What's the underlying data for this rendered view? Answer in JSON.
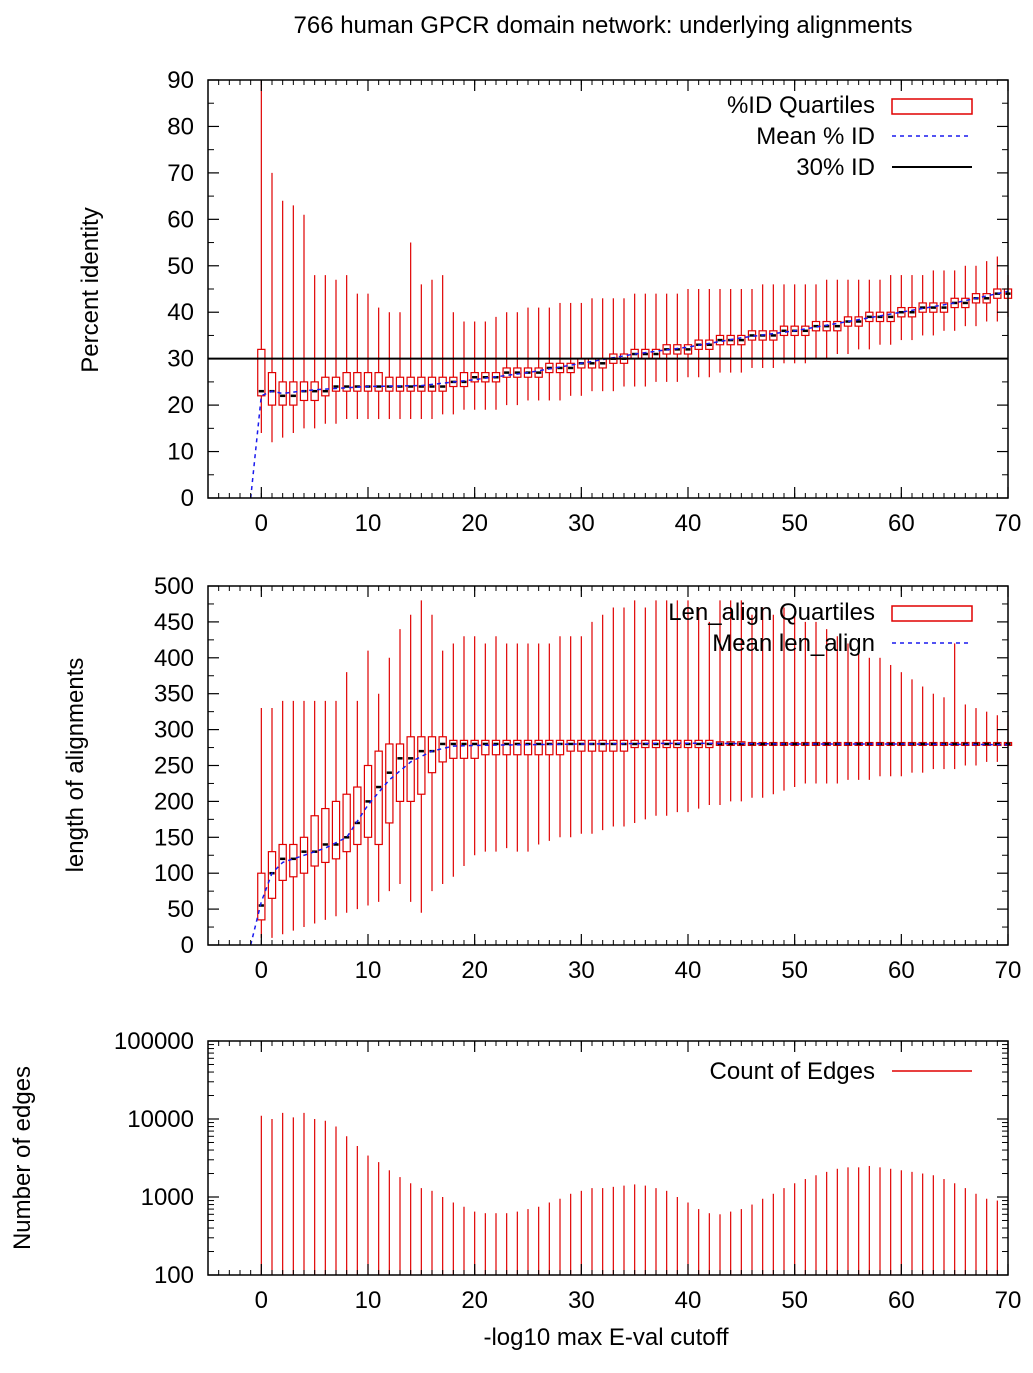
{
  "title": "766 human GPCR domain network: underlying alignments",
  "chart_data": [
    {
      "type": "box",
      "ylabel": "Percent identity",
      "xlabel": "",
      "xlim": [
        -5,
        70
      ],
      "ylim": [
        0,
        90
      ],
      "xticks": [
        0,
        10,
        20,
        30,
        40,
        50,
        60,
        70
      ],
      "yticks": [
        0,
        10,
        20,
        30,
        40,
        50,
        60,
        70,
        80,
        90
      ],
      "legend_position": "top-right",
      "legend": {
        "quartiles": "%ID Quartiles",
        "mean": "Mean % ID",
        "reference": "30% ID"
      },
      "reference_line": 30,
      "x": [
        0,
        1,
        2,
        3,
        4,
        5,
        6,
        7,
        8,
        9,
        10,
        11,
        12,
        13,
        14,
        15,
        16,
        17,
        18,
        19,
        20,
        21,
        22,
        23,
        24,
        25,
        26,
        27,
        28,
        29,
        30,
        31,
        32,
        33,
        34,
        35,
        36,
        37,
        38,
        39,
        40,
        41,
        42,
        43,
        44,
        45,
        46,
        47,
        48,
        49,
        50,
        51,
        52,
        53,
        54,
        55,
        56,
        57,
        58,
        59,
        60,
        61,
        62,
        63,
        64,
        65,
        66,
        67,
        68,
        69,
        70
      ],
      "median": [
        23,
        23,
        22,
        22,
        23,
        23,
        23,
        24,
        24,
        24,
        24,
        24,
        24,
        24,
        24,
        24,
        24,
        24,
        25,
        25,
        26,
        26,
        26,
        27,
        27,
        27,
        27,
        28,
        28,
        28,
        29,
        29,
        29,
        30,
        30,
        31,
        31,
        31,
        32,
        32,
        32,
        33,
        33,
        34,
        34,
        34,
        35,
        35,
        35,
        36,
        36,
        36,
        37,
        37,
        37,
        38,
        38,
        39,
        39,
        39,
        40,
        40,
        41,
        41,
        41,
        42,
        42,
        43,
        43,
        44,
        44
      ],
      "q1": [
        22,
        20,
        20,
        20,
        21,
        21,
        22,
        23,
        23,
        23,
        23,
        23,
        23,
        23,
        23,
        23,
        23,
        23,
        24,
        24,
        25,
        25,
        25,
        26,
        26,
        26,
        26,
        27,
        27,
        27,
        28,
        28,
        28,
        29,
        29,
        30,
        30,
        30,
        31,
        31,
        31,
        32,
        32,
        33,
        33,
        33,
        34,
        34,
        34,
        35,
        35,
        35,
        36,
        36,
        36,
        37,
        37,
        38,
        38,
        38,
        39,
        39,
        40,
        40,
        40,
        41,
        41,
        42,
        42,
        43,
        43
      ],
      "q3": [
        32,
        27,
        25,
        25,
        25,
        25,
        26,
        26,
        27,
        27,
        27,
        27,
        26,
        26,
        26,
        26,
        26,
        26,
        26,
        27,
        27,
        27,
        27,
        28,
        28,
        28,
        28,
        29,
        29,
        29,
        30,
        30,
        30,
        31,
        31,
        32,
        32,
        32,
        33,
        33,
        33,
        34,
        34,
        35,
        35,
        35,
        36,
        36,
        36,
        37,
        37,
        37,
        38,
        38,
        38,
        39,
        39,
        40,
        40,
        40,
        41,
        41,
        42,
        42,
        42,
        43,
        43,
        44,
        44,
        45,
        45
      ],
      "min": [
        14,
        12,
        13,
        14,
        15,
        15,
        16,
        16,
        17,
        17,
        17,
        17,
        17,
        17,
        17,
        17,
        17,
        18,
        18,
        19,
        19,
        19,
        19,
        20,
        20,
        21,
        21,
        21,
        21,
        22,
        22,
        23,
        23,
        23,
        24,
        24,
        24,
        25,
        25,
        25,
        26,
        26,
        26,
        27,
        27,
        27,
        28,
        28,
        28,
        29,
        29,
        29,
        30,
        30,
        31,
        31,
        32,
        32,
        33,
        33,
        34,
        34,
        35,
        35,
        36,
        36,
        37,
        37,
        38,
        38,
        39
      ],
      "max": [
        90,
        70,
        64,
        63,
        61,
        48,
        48,
        47,
        48,
        44,
        44,
        41,
        40,
        40,
        55,
        46,
        47,
        48,
        40,
        38,
        38,
        38,
        39,
        40,
        40,
        41,
        41,
        41,
        42,
        42,
        42,
        43,
        43,
        43,
        43,
        44,
        44,
        44,
        44,
        44,
        45,
        45,
        45,
        45,
        45,
        45,
        45,
        46,
        46,
        46,
        46,
        46,
        46,
        47,
        47,
        47,
        47,
        47,
        47,
        48,
        48,
        48,
        48,
        49,
        49,
        49,
        50,
        50,
        51,
        52,
        48
      ],
      "mean": [
        {
          "x": -1,
          "y": 0
        },
        {
          "x": 0,
          "y": 22
        },
        {
          "x": 1,
          "y": 23
        },
        {
          "x": 2,
          "y": 22.5
        },
        {
          "x": 3,
          "y": 22.8
        },
        {
          "x": 5,
          "y": 23.3
        },
        {
          "x": 10,
          "y": 24
        },
        {
          "x": 15,
          "y": 24.2
        },
        {
          "x": 20,
          "y": 25.5
        },
        {
          "x": 25,
          "y": 27
        },
        {
          "x": 30,
          "y": 29
        },
        {
          "x": 35,
          "y": 31
        },
        {
          "x": 40,
          "y": 32.5
        },
        {
          "x": 45,
          "y": 34.5
        },
        {
          "x": 50,
          "y": 36
        },
        {
          "x": 55,
          "y": 38
        },
        {
          "x": 60,
          "y": 40
        },
        {
          "x": 65,
          "y": 42
        },
        {
          "x": 70,
          "y": 44.5
        }
      ]
    },
    {
      "type": "box",
      "ylabel": "length of alignments",
      "xlabel": "",
      "xlim": [
        -5,
        70
      ],
      "ylim": [
        0,
        500
      ],
      "xticks": [
        0,
        10,
        20,
        30,
        40,
        50,
        60,
        70
      ],
      "yticks": [
        0,
        50,
        100,
        150,
        200,
        250,
        300,
        350,
        400,
        450,
        500
      ],
      "legend_position": "top-right",
      "legend": {
        "quartiles": "Len_align Quartiles",
        "mean": "Mean len_align"
      },
      "x": [
        0,
        1,
        2,
        3,
        4,
        5,
        6,
        7,
        8,
        9,
        10,
        11,
        12,
        13,
        14,
        15,
        16,
        17,
        18,
        19,
        20,
        21,
        22,
        23,
        24,
        25,
        26,
        27,
        28,
        29,
        30,
        31,
        32,
        33,
        34,
        35,
        36,
        37,
        38,
        39,
        40,
        41,
        42,
        43,
        44,
        45,
        46,
        47,
        48,
        49,
        50,
        51,
        52,
        53,
        54,
        55,
        56,
        57,
        58,
        59,
        60,
        61,
        62,
        63,
        64,
        65,
        66,
        67,
        68,
        69,
        70
      ],
      "median": [
        55,
        100,
        120,
        120,
        130,
        130,
        140,
        140,
        150,
        170,
        200,
        220,
        240,
        260,
        260,
        270,
        270,
        280,
        280,
        280,
        280,
        280,
        280,
        280,
        280,
        280,
        280,
        280,
        280,
        280,
        280,
        280,
        280,
        280,
        280,
        280,
        280,
        280,
        280,
        280,
        280,
        280,
        280,
        280,
        280,
        280,
        280,
        280,
        280,
        280,
        280,
        280,
        280,
        280,
        280,
        280,
        280,
        280,
        280,
        280,
        280,
        280,
        280,
        280,
        280,
        280,
        280,
        280,
        280,
        280,
        280
      ],
      "q1": [
        35,
        65,
        90,
        95,
        100,
        110,
        115,
        120,
        130,
        140,
        150,
        140,
        170,
        200,
        200,
        210,
        240,
        255,
        260,
        260,
        260,
        265,
        265,
        265,
        265,
        265,
        265,
        265,
        265,
        270,
        270,
        270,
        270,
        270,
        270,
        275,
        275,
        275,
        275,
        275,
        275,
        275,
        275,
        278,
        278,
        278,
        278,
        278,
        278,
        278,
        278,
        278,
        278,
        278,
        278,
        278,
        278,
        278,
        278,
        278,
        278,
        278,
        278,
        278,
        278,
        278,
        278,
        278,
        278,
        278,
        278
      ],
      "q3": [
        100,
        130,
        140,
        140,
        150,
        180,
        190,
        200,
        210,
        220,
        250,
        270,
        280,
        280,
        290,
        290,
        290,
        290,
        285,
        285,
        285,
        285,
        285,
        285,
        285,
        285,
        285,
        285,
        285,
        285,
        285,
        285,
        285,
        285,
        285,
        285,
        285,
        285,
        285,
        285,
        285,
        285,
        285,
        283,
        283,
        283,
        282,
        282,
        282,
        282,
        282,
        282,
        282,
        282,
        282,
        282,
        282,
        282,
        282,
        282,
        282,
        282,
        282,
        282,
        282,
        282,
        282,
        282,
        282,
        282,
        282
      ],
      "min": [
        10,
        10,
        15,
        20,
        25,
        30,
        35,
        40,
        45,
        50,
        55,
        60,
        75,
        85,
        60,
        45,
        75,
        85,
        95,
        110,
        125,
        130,
        130,
        135,
        130,
        130,
        140,
        145,
        150,
        150,
        155,
        155,
        160,
        165,
        165,
        170,
        175,
        180,
        180,
        185,
        185,
        190,
        195,
        195,
        200,
        200,
        205,
        205,
        210,
        215,
        220,
        225,
        225,
        225,
        225,
        230,
        230,
        230,
        235,
        235,
        235,
        240,
        240,
        245,
        245,
        245,
        250,
        250,
        255,
        255,
        250
      ],
      "max": [
        330,
        330,
        340,
        340,
        340,
        340,
        340,
        340,
        380,
        340,
        410,
        350,
        400,
        440,
        460,
        480,
        460,
        410,
        420,
        430,
        430,
        420,
        430,
        420,
        420,
        420,
        420,
        420,
        430,
        430,
        430,
        450,
        460,
        470,
        470,
        480,
        470,
        480,
        480,
        480,
        480,
        470,
        450,
        480,
        480,
        480,
        460,
        470,
        460,
        470,
        460,
        450,
        450,
        440,
        430,
        420,
        410,
        400,
        400,
        390,
        380,
        370,
        360,
        350,
        345,
        420,
        335,
        330,
        325,
        320,
        320
      ],
      "mean": [
        {
          "x": -1,
          "y": 0
        },
        {
          "x": 0,
          "y": 60
        },
        {
          "x": 1,
          "y": 100
        },
        {
          "x": 2,
          "y": 115
        },
        {
          "x": 4,
          "y": 125
        },
        {
          "x": 6,
          "y": 135
        },
        {
          "x": 8,
          "y": 150
        },
        {
          "x": 10,
          "y": 195
        },
        {
          "x": 12,
          "y": 230
        },
        {
          "x": 14,
          "y": 255
        },
        {
          "x": 16,
          "y": 270
        },
        {
          "x": 18,
          "y": 277
        },
        {
          "x": 20,
          "y": 278
        },
        {
          "x": 25,
          "y": 279
        },
        {
          "x": 30,
          "y": 280
        },
        {
          "x": 40,
          "y": 281
        },
        {
          "x": 50,
          "y": 280
        },
        {
          "x": 60,
          "y": 280
        },
        {
          "x": 70,
          "y": 279
        }
      ]
    },
    {
      "type": "bar",
      "ylabel": "Number of edges",
      "xlabel": "-log10 max E-val cutoff",
      "xlim": [
        -5,
        70
      ],
      "ylim": [
        100,
        100000
      ],
      "yscale": "log",
      "xticks": [
        0,
        10,
        20,
        30,
        40,
        50,
        60,
        70
      ],
      "yticks": [
        100,
        1000,
        10000,
        100000
      ],
      "legend_position": "top-right",
      "legend": {
        "count": "Count of Edges"
      },
      "x": [
        0,
        1,
        2,
        3,
        4,
        5,
        6,
        7,
        8,
        9,
        10,
        11,
        12,
        13,
        14,
        15,
        16,
        17,
        18,
        19,
        20,
        21,
        22,
        23,
        24,
        25,
        26,
        27,
        28,
        29,
        30,
        31,
        32,
        33,
        34,
        35,
        36,
        37,
        38,
        39,
        40,
        41,
        42,
        43,
        44,
        45,
        46,
        47,
        48,
        49,
        50,
        51,
        52,
        53,
        54,
        55,
        56,
        57,
        58,
        59,
        60,
        61,
        62,
        63,
        64,
        65,
        66,
        67,
        68,
        69
      ],
      "values": [
        11000,
        10000,
        12000,
        10500,
        12000,
        10000,
        9500,
        8000,
        6000,
        4500,
        3400,
        2800,
        2200,
        1800,
        1500,
        1300,
        1200,
        1000,
        850,
        750,
        650,
        620,
        620,
        620,
        650,
        700,
        750,
        850,
        950,
        1100,
        1200,
        1300,
        1300,
        1350,
        1400,
        1450,
        1400,
        1300,
        1200,
        1000,
        850,
        700,
        620,
        600,
        650,
        700,
        800,
        950,
        1100,
        1300,
        1500,
        1700,
        1900,
        2100,
        2300,
        2400,
        2400,
        2500,
        2400,
        2300,
        2200,
        2100,
        2000,
        1900,
        1700,
        1500,
        1300,
        1100,
        950,
        900
      ]
    }
  ]
}
